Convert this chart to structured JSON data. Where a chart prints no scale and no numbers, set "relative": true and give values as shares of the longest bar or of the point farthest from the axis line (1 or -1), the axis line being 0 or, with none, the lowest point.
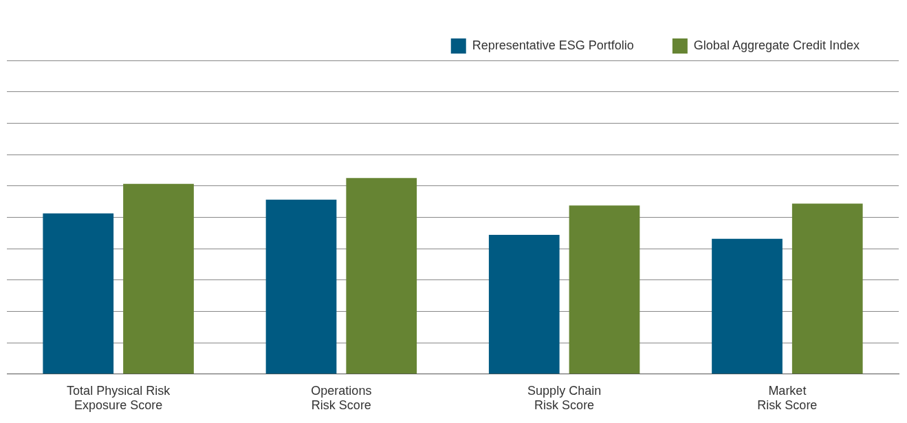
{
  "chart_data": {
    "type": "bar",
    "relative": true,
    "grid": "y",
    "legend": "top right",
    "categories": [
      "Total Physical Risk\nExposure Score",
      "Operations\nRisk Score",
      "Supply Chain\nRisk Score",
      "Market\nRisk Score"
    ],
    "series": [
      {
        "name": "Representative ESG Portfolio",
        "color": "#005a82",
        "values": [
          0.82,
          0.89,
          0.71,
          0.69
        ]
      },
      {
        "name": "Global Aggregate Credit Index",
        "color": "#668433",
        "values": [
          0.97,
          1,
          0.86,
          0.87
        ]
      }
    ]
  }
}
